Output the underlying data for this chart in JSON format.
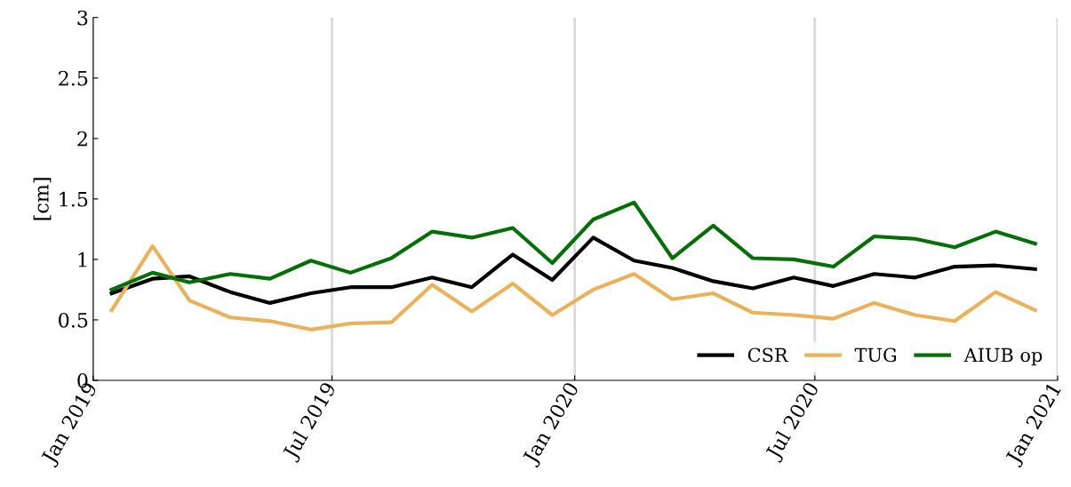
{
  "chart_data": {
    "type": "line",
    "ylabel": "[cm]",
    "x": [
      "2019-01-15",
      "2019-02-15",
      "2019-03-15",
      "2019-04-15",
      "2019-05-15",
      "2019-06-15",
      "2019-07-15",
      "2019-08-15",
      "2019-09-15",
      "2019-10-15",
      "2019-11-15",
      "2019-12-15",
      "2020-01-15",
      "2020-02-15",
      "2020-03-15",
      "2020-04-15",
      "2020-05-15",
      "2020-06-15",
      "2020-07-15",
      "2020-08-15",
      "2020-09-15",
      "2020-10-15",
      "2020-11-15",
      "2020-12-15"
    ],
    "series": [
      {
        "name": "CSR",
        "color": "#000000",
        "values": [
          0.72,
          0.84,
          0.86,
          0.73,
          0.64,
          0.72,
          0.77,
          0.77,
          0.85,
          0.77,
          1.04,
          0.83,
          1.18,
          0.99,
          0.93,
          0.82,
          0.76,
          0.85,
          0.78,
          0.88,
          0.85,
          0.94,
          0.95,
          0.92
        ]
      },
      {
        "name": "TUG",
        "color": "#ebb15a",
        "values": [
          0.58,
          1.11,
          0.66,
          0.52,
          0.49,
          0.42,
          0.47,
          0.48,
          0.79,
          0.57,
          0.8,
          0.54,
          0.75,
          0.88,
          0.67,
          0.72,
          0.56,
          0.54,
          0.51,
          0.64,
          0.54,
          0.49,
          0.73,
          0.58
        ]
      },
      {
        "name": "AIUB op",
        "color": "#066e06",
        "values": [
          0.75,
          0.89,
          0.81,
          0.88,
          0.84,
          0.99,
          0.89,
          1.01,
          1.23,
          1.18,
          1.26,
          0.97,
          1.33,
          1.47,
          1.01,
          1.28,
          1.01,
          1.0,
          0.94,
          1.19,
          1.17,
          1.1,
          1.23,
          1.13
        ]
      }
    ],
    "xlim": [
      "2019-01-01",
      "2021-01-01"
    ],
    "xticks": [
      {
        "value": "2019-01-01",
        "label": "Jan 2019"
      },
      {
        "value": "2019-07-01",
        "label": "Jul 2019"
      },
      {
        "value": "2020-01-01",
        "label": "Jan 2020"
      },
      {
        "value": "2020-07-01",
        "label": "Jul 2020"
      },
      {
        "value": "2021-01-01",
        "label": "Jan 2021"
      }
    ],
    "ylim": [
      0,
      3
    ],
    "yticks": [
      0,
      0.5,
      1,
      1.5,
      2,
      2.5,
      3
    ],
    "grid": "x",
    "legend": "bottom right",
    "marker": "none",
    "line_style": "solid"
  }
}
